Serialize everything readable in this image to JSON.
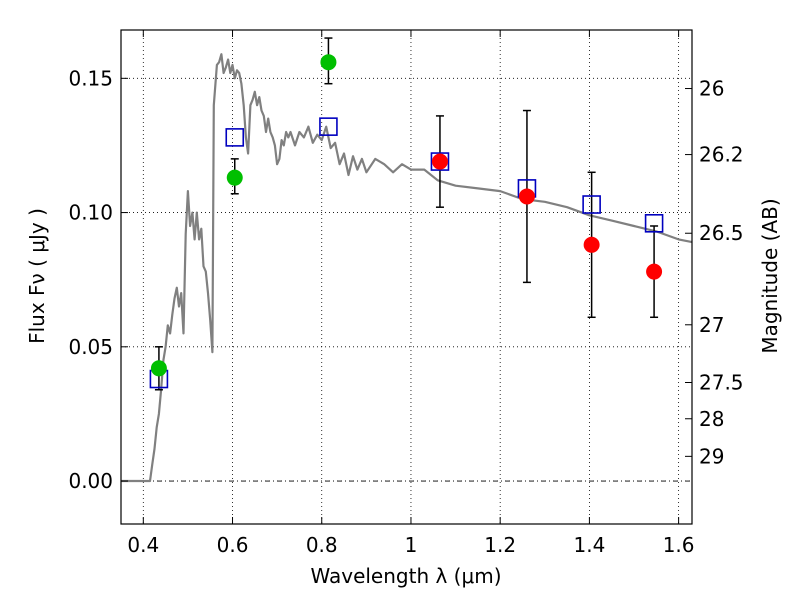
{
  "chart_data": {
    "type": "scatter",
    "xlabel": "Wavelength  λ (μm)",
    "ylabel": "Flux  Fν  ( μJy )",
    "y2label": "Magnitude (AB)",
    "xlim": [
      0.35,
      1.63
    ],
    "ylim": [
      -0.016,
      0.168
    ],
    "grid": true,
    "x_ticks": [
      {
        "value": 0.4,
        "label": "0.4"
      },
      {
        "value": 0.6,
        "label": "0.6"
      },
      {
        "value": 0.8,
        "label": "0.8"
      },
      {
        "value": 1.0,
        "label": "1"
      },
      {
        "value": 1.2,
        "label": "1.2"
      },
      {
        "value": 1.4,
        "label": "1.4"
      },
      {
        "value": 1.6,
        "label": "1.6"
      }
    ],
    "y_ticks": [
      {
        "value": 0.0,
        "label": "0.00"
      },
      {
        "value": 0.05,
        "label": "0.05"
      },
      {
        "value": 0.1,
        "label": "0.10"
      },
      {
        "value": 0.15,
        "label": "0.15"
      }
    ],
    "y2_ticks": [
      {
        "label": "26",
        "flux": 0.1462
      },
      {
        "label": "26.2",
        "flux": 0.1216
      },
      {
        "label": "26.5",
        "flux": 0.0923
      },
      {
        "label": "27",
        "flux": 0.0582
      },
      {
        "label": "27.5",
        "flux": 0.0367
      },
      {
        "label": "28",
        "flux": 0.0232
      },
      {
        "label": "29",
        "flux": 0.0092
      }
    ],
    "colors": {
      "model": "#808080",
      "green": "#00bf00",
      "red": "#ff0000",
      "square": "#0000bf",
      "errorbar": "#000000",
      "zero_line": "#000000"
    },
    "series": [
      {
        "kind": "line",
        "color": "#808080",
        "x": [
          0.35,
          0.41,
          0.415,
          0.42,
          0.425,
          0.43,
          0.435,
          0.44,
          0.445,
          0.45,
          0.455,
          0.46,
          0.465,
          0.47,
          0.475,
          0.48,
          0.485,
          0.49,
          0.495,
          0.5,
          0.505,
          0.51,
          0.515,
          0.52,
          0.525,
          0.53,
          0.535,
          0.54,
          0.545,
          0.55,
          0.555,
          0.558,
          0.565,
          0.57,
          0.575,
          0.58,
          0.585,
          0.59,
          0.595,
          0.6,
          0.605,
          0.61,
          0.615,
          0.62,
          0.625,
          0.63,
          0.635,
          0.64,
          0.645,
          0.65,
          0.655,
          0.66,
          0.665,
          0.67,
          0.675,
          0.68,
          0.685,
          0.69,
          0.695,
          0.7,
          0.705,
          0.71,
          0.715,
          0.72,
          0.725,
          0.73,
          0.74,
          0.75,
          0.76,
          0.77,
          0.78,
          0.79,
          0.8,
          0.81,
          0.82,
          0.83,
          0.84,
          0.85,
          0.86,
          0.87,
          0.88,
          0.89,
          0.9,
          0.92,
          0.94,
          0.96,
          0.98,
          1.0,
          1.03,
          1.06,
          1.1,
          1.15,
          1.2,
          1.25,
          1.3,
          1.35,
          1.4,
          1.45,
          1.5,
          1.55,
          1.6,
          1.63
        ],
        "y": [
          0.0,
          0.0,
          0.0,
          0.006,
          0.012,
          0.02,
          0.025,
          0.034,
          0.045,
          0.05,
          0.058,
          0.055,
          0.062,
          0.068,
          0.072,
          0.065,
          0.07,
          0.055,
          0.092,
          0.108,
          0.095,
          0.1,
          0.09,
          0.1,
          0.09,
          0.094,
          0.08,
          0.078,
          0.07,
          0.06,
          0.048,
          0.14,
          0.155,
          0.156,
          0.159,
          0.152,
          0.154,
          0.157,
          0.152,
          0.155,
          0.15,
          0.153,
          0.152,
          0.148,
          0.14,
          0.128,
          0.122,
          0.14,
          0.142,
          0.145,
          0.14,
          0.143,
          0.138,
          0.136,
          0.13,
          0.135,
          0.13,
          0.128,
          0.125,
          0.118,
          0.12,
          0.127,
          0.125,
          0.13,
          0.128,
          0.13,
          0.125,
          0.13,
          0.128,
          0.132,
          0.126,
          0.129,
          0.127,
          0.132,
          0.124,
          0.126,
          0.118,
          0.122,
          0.114,
          0.121,
          0.116,
          0.12,
          0.115,
          0.12,
          0.118,
          0.115,
          0.118,
          0.116,
          0.116,
          0.112,
          0.11,
          0.109,
          0.108,
          0.105,
          0.104,
          0.102,
          0.099,
          0.097,
          0.095,
          0.093,
          0.09,
          0.089
        ]
      },
      {
        "kind": "points",
        "marker": "circle",
        "color": "#00bf00",
        "x": [
          0.435,
          0.605,
          0.815
        ],
        "y": [
          0.042,
          0.113,
          0.156
        ],
        "err_low": [
          0.008,
          0.006,
          0.008
        ],
        "err_high": [
          0.008,
          0.007,
          0.009
        ]
      },
      {
        "kind": "points",
        "marker": "circle",
        "color": "#ff0000",
        "x": [
          1.065,
          1.26,
          1.405,
          1.545
        ],
        "y": [
          0.119,
          0.106,
          0.088,
          0.078
        ],
        "err_low": [
          0.017,
          0.032,
          0.027,
          0.017
        ],
        "err_high": [
          0.017,
          0.032,
          0.027,
          0.017
        ]
      },
      {
        "kind": "points",
        "marker": "square",
        "color": "#0000bf",
        "x": [
          0.435,
          0.605,
          0.815,
          1.065,
          1.26,
          1.405,
          1.545
        ],
        "y": [
          0.038,
          0.128,
          0.132,
          0.119,
          0.109,
          0.103,
          0.096
        ]
      }
    ]
  }
}
